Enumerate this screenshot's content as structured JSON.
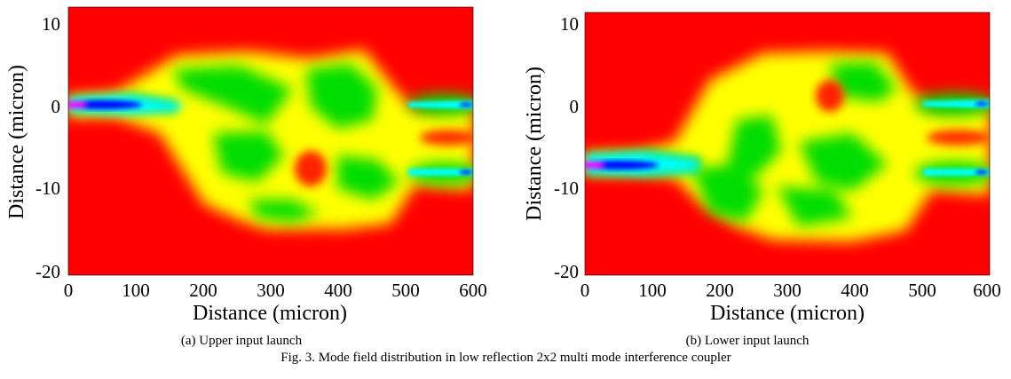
{
  "figure": {
    "caption": "Fig. 3. Mode field distribution in low reflection 2x2 multi mode interference coupler"
  },
  "colors": {
    "background_field": "#ff0000",
    "scale": [
      "#ff0000",
      "#ffff00",
      "#00dd00",
      "#00ffff",
      "#0000ff",
      "#ff00ff"
    ]
  },
  "chart_data": [
    {
      "type": "heatmap",
      "caption": "(a) Upper input launch",
      "xlabel": "Distance (micron)",
      "ylabel": "Distance (micron)",
      "xlim": [
        0,
        600
      ],
      "ylim": [
        -20,
        12
      ],
      "xticks": [
        "0",
        "100",
        "200",
        "300",
        "400",
        "500",
        "600"
      ],
      "yticks": [
        "10",
        "0",
        "-10",
        "-20"
      ],
      "input_waveguide_y": 0,
      "output_waveguides_y": [
        0,
        -8
      ],
      "mmi_section_x": [
        170,
        470
      ],
      "mmi_section_y": [
        -14,
        5
      ]
    },
    {
      "type": "heatmap",
      "caption": "(b) Lower input launch",
      "xlabel": "Distance (micron)",
      "ylabel": "Distance (micron)",
      "xlim": [
        0,
        600
      ],
      "ylim": [
        -20,
        12
      ],
      "xticks": [
        "0",
        "100",
        "200",
        "300",
        "400",
        "500",
        "600"
      ],
      "yticks": [
        "10",
        "0",
        "-10",
        "-20"
      ],
      "input_waveguide_y": -7.5,
      "output_waveguides_y": [
        0,
        -8
      ],
      "mmi_section_x": [
        170,
        470
      ],
      "mmi_section_y": [
        -14,
        5
      ]
    }
  ]
}
